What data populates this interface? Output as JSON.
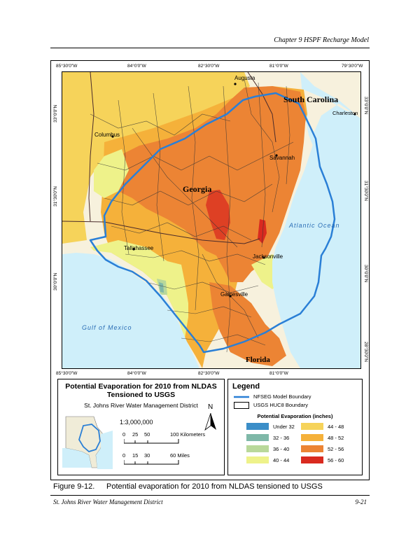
{
  "header": {
    "chapter": "Chapter 9 HSPF Recharge Model"
  },
  "map": {
    "lon_ticks_top": [
      "85°30'0\"W",
      "84°0'0\"W",
      "82°30'0\"W",
      "81°0'0\"W",
      "79°30'0\"W"
    ],
    "lon_ticks_bottom": [
      "85°30'0\"W",
      "84°0'0\"W",
      "82°30'0\"W",
      "81°0'0\"W"
    ],
    "lat_ticks": [
      "33°0'0\"N",
      "31°30'0\"N",
      "30°0'0\"N",
      "28°30'0\"N"
    ],
    "places": {
      "augusta": "Augusta",
      "south_carolina": "South Carolina",
      "charleston": "Charleston",
      "columbus": "Columbus",
      "savannah": "Savannah",
      "georgia": "Georgia",
      "atlantic": "Atlantic Ocean",
      "tallahassee": "Tallahassee",
      "jacksonville": "Jacksonville",
      "gainesville": "Gainesville",
      "gulf": "Gulf of Mexico",
      "florida": "Florida"
    },
    "colors": {
      "ocean": "#cfeffa",
      "land": "#f7f1dd",
      "boundary": "#2a7fd6"
    }
  },
  "titlebox": {
    "title_line1": "Potential Evaporation for 2010 from NLDAS",
    "title_line2": "Tensioned to USGS",
    "subtitle": "St. Johns River Water Management District",
    "north": "N",
    "scale": "1:3,000,000",
    "km_ticks": [
      "0",
      "25",
      "50",
      "100 Kilometers"
    ],
    "mi_ticks": [
      "0",
      "15",
      "30",
      "60 Miles"
    ]
  },
  "legend": {
    "title": "Legend",
    "boundary_label": "NFSEG Model Boundary",
    "huc_label": "USGS HUC8 Boundary",
    "pe_title": "Potential Evaporation (inches)",
    "classes": [
      {
        "label": "Under 32",
        "color": "#3b8ec8"
      },
      {
        "label": "32 - 36",
        "color": "#7fb8a8"
      },
      {
        "label": "36 - 40",
        "color": "#b9d89a"
      },
      {
        "label": "40 - 44",
        "color": "#eef28a"
      },
      {
        "label": "44 - 48",
        "color": "#f6d35a"
      },
      {
        "label": "48 - 52",
        "color": "#f5b13a"
      },
      {
        "label": "52 - 56",
        "color": "#ec8434"
      },
      {
        "label": "56 - 60",
        "color": "#d92a1f"
      }
    ]
  },
  "caption": {
    "number": "Figure 9-12.",
    "text": "Potential evaporation for 2010 from NLDAS tensioned to USGS"
  },
  "footer": {
    "left": "St. Johns River Water Management District",
    "right": "9-21"
  }
}
